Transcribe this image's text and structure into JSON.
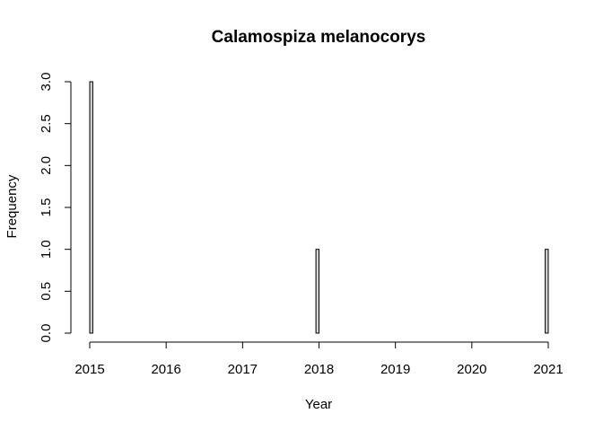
{
  "chart_data": {
    "type": "bar",
    "title": "Calamospiza melanocorys",
    "xlabel": "Year",
    "ylabel": "Frequency",
    "xlim": [
      2015,
      2021
    ],
    "ylim": [
      0,
      3
    ],
    "x_ticks": [
      "2015",
      "2016",
      "2017",
      "2018",
      "2019",
      "2020",
      "2021"
    ],
    "y_ticks": [
      "0.0",
      "0.5",
      "1.0",
      "1.5",
      "2.0",
      "2.5",
      "3.0"
    ],
    "bin_width_years": 0.04,
    "bins": [
      {
        "start": 2015.0,
        "end": 2015.04,
        "value": 3
      },
      {
        "start": 2017.96,
        "end": 2018.0,
        "value": 1
      },
      {
        "start": 2020.96,
        "end": 2021.0,
        "value": 1
      }
    ],
    "fill_color": "#d3d3d3",
    "grid": false,
    "legend": "none"
  }
}
